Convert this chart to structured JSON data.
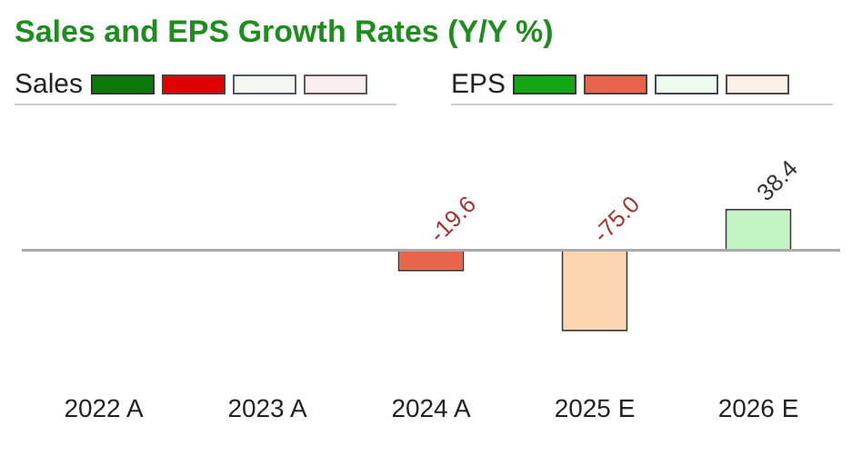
{
  "chart_data": {
    "type": "bar",
    "title": "Sales and EPS Growth Rates (Y/Y %)",
    "categories": [
      "2022 A",
      "2023 A",
      "2024 A",
      "2025 E",
      "2026 E"
    ],
    "series": [
      {
        "name": "Sales",
        "color": "#0b7a0b",
        "values": [
          null,
          null,
          null,
          null,
          null
        ]
      },
      {
        "name": "EPS",
        "color": "#13a813",
        "colors": [
          "#13a813",
          "#13a813",
          "#e8644a",
          "#fcd6b0",
          "#c4f3c4"
        ],
        "values": [
          null,
          null,
          -19.6,
          -75.0,
          38.4
        ],
        "value_labels": [
          null,
          null,
          "-19.6",
          "-75.0",
          "38.4"
        ]
      }
    ],
    "legend": "top left",
    "grid": false
  }
}
